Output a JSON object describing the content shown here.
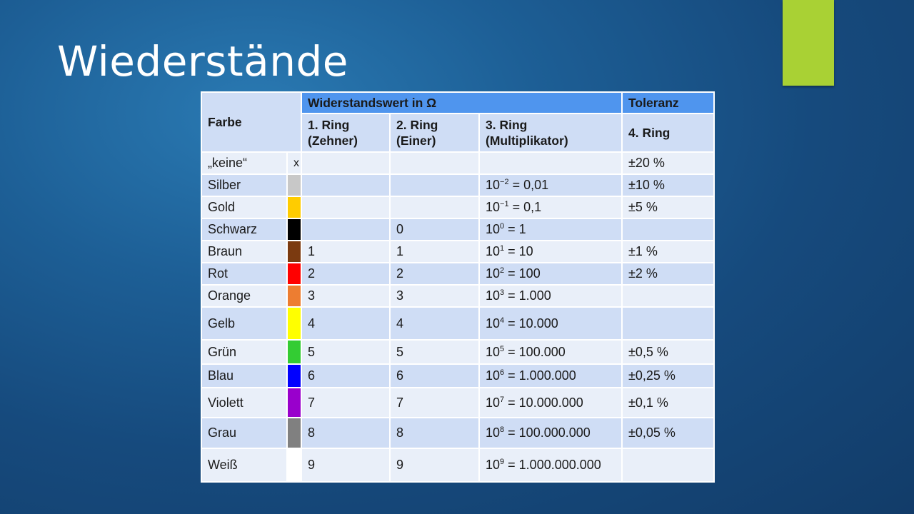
{
  "slide": {
    "title": "Wiederstände"
  },
  "table": {
    "header": {
      "farbe": "Farbe",
      "widerstandswert": "Widerstandswert in Ω",
      "toleranz": "Toleranz",
      "ring1_line1": "1. Ring",
      "ring1_line2": "(Zehner)",
      "ring2_line1": "2. Ring",
      "ring2_line2": "(Einer)",
      "ring3_line1": "3. Ring",
      "ring3_line2": "(Multiplikator)",
      "ring4": "4. Ring"
    },
    "rows": [
      {
        "name": "„keine“",
        "swatch_text": "x",
        "swatch_color": "#e9eff9",
        "ring1": "",
        "ring2": "",
        "mult_exp": "",
        "mult_value": "",
        "tolerance": "±20 %"
      },
      {
        "name": "Silber",
        "swatch_text": "",
        "swatch_color": "#c8c8c8",
        "ring1": "",
        "ring2": "",
        "mult_exp": "−2",
        "mult_value": " = 0,01",
        "tolerance": "±10 %"
      },
      {
        "name": "Gold",
        "swatch_text": "",
        "swatch_color": "#ffcc00",
        "ring1": "",
        "ring2": "",
        "mult_exp": "−1",
        "mult_value": " = 0,1",
        "tolerance": "±5 %"
      },
      {
        "name": "Schwarz",
        "swatch_text": "",
        "swatch_color": "#000000",
        "ring1": "",
        "ring2": "0",
        "mult_exp": "0",
        "mult_value": " = 1",
        "tolerance": ""
      },
      {
        "name": "Braun",
        "swatch_text": "",
        "swatch_color": "#7b3a10",
        "ring1": "1",
        "ring2": "1",
        "mult_exp": "1",
        "mult_value": " = 10",
        "tolerance": "±1 %"
      },
      {
        "name": "Rot",
        "swatch_text": "",
        "swatch_color": "#ff0000",
        "ring1": "2",
        "ring2": "2",
        "mult_exp": "2",
        "mult_value": " = 100",
        "tolerance": "±2 %"
      },
      {
        "name": "Orange",
        "swatch_text": "",
        "swatch_color": "#ed7d31",
        "ring1": "3",
        "ring2": "3",
        "mult_exp": "3",
        "mult_value": " = 1.000",
        "tolerance": ""
      },
      {
        "name": "Gelb",
        "swatch_text": "",
        "swatch_color": "#ffff00",
        "ring1": "4",
        "ring2": "4",
        "mult_exp": "4",
        "mult_value": " = 10.000",
        "tolerance": ""
      },
      {
        "name": "Grün",
        "swatch_text": "",
        "swatch_color": "#33cc33",
        "ring1": "5",
        "ring2": "5",
        "mult_exp": "5",
        "mult_value": " = 100.000",
        "tolerance": "±0,5 %"
      },
      {
        "name": "Blau",
        "swatch_text": "",
        "swatch_color": "#0000ff",
        "ring1": "6",
        "ring2": "6",
        "mult_exp": "6",
        "mult_value": " = 1.000.000",
        "tolerance": "±0,25 %"
      },
      {
        "name": "Violett",
        "swatch_text": "",
        "swatch_color": "#9900cc",
        "ring1": "7",
        "ring2": "7",
        "mult_exp": "7",
        "mult_value": " = 10.000.000",
        "tolerance": "±0,1 %"
      },
      {
        "name": "Grau",
        "swatch_text": "",
        "swatch_color": "#808080",
        "ring1": "8",
        "ring2": "8",
        "mult_exp": "8",
        "mult_value": " = 100.000.000",
        "tolerance": "±0,05 %"
      },
      {
        "name": "Weiß",
        "swatch_text": "",
        "swatch_color": "#ffffff",
        "ring1": "9",
        "ring2": "9",
        "mult_exp": "9",
        "mult_value": " = 1.000.000.000",
        "tolerance": ""
      }
    ]
  },
  "colors": {
    "accent": "#a9d134",
    "header_blue": "#4f95ee",
    "row_light": "#e9eff9",
    "row_dark": "#cfddf5"
  }
}
